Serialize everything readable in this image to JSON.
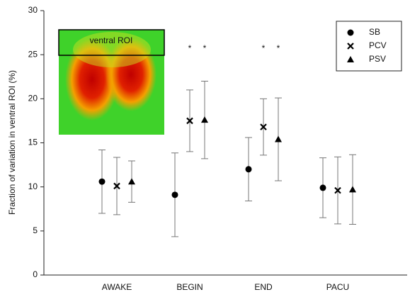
{
  "chart_data": {
    "type": "scatter",
    "y_label": "Fraction of variation in ventral ROI (%)",
    "categories": [
      "AWAKE",
      "BEGIN",
      "END",
      "PACU"
    ],
    "ylim": [
      0,
      30
    ],
    "yticks": [
      0,
      5,
      10,
      15,
      20,
      25,
      30
    ],
    "inset_label": "ventral ROI",
    "legend": "upper right",
    "series": [
      {
        "name": "SB",
        "marker": "circle",
        "color": "#000000",
        "values": [
          10.6,
          9.1,
          12.0,
          9.9
        ],
        "errors": [
          3.6,
          4.75,
          3.6,
          3.4
        ],
        "annotations": [
          null,
          null,
          null,
          null
        ]
      },
      {
        "name": "PCV",
        "marker": "x",
        "color": "#000000",
        "values": [
          10.1,
          17.5,
          16.8,
          9.6
        ],
        "errors": [
          3.25,
          3.5,
          3.2,
          3.8
        ],
        "annotations": [
          null,
          "*",
          "*",
          null
        ]
      },
      {
        "name": "PSV",
        "marker": "triangle",
        "color": "#000000",
        "values": [
          10.6,
          17.6,
          15.4,
          9.7
        ],
        "errors": [
          2.35,
          4.4,
          4.7,
          3.95
        ],
        "annotations": [
          null,
          "*",
          "*",
          null
        ]
      }
    ]
  }
}
